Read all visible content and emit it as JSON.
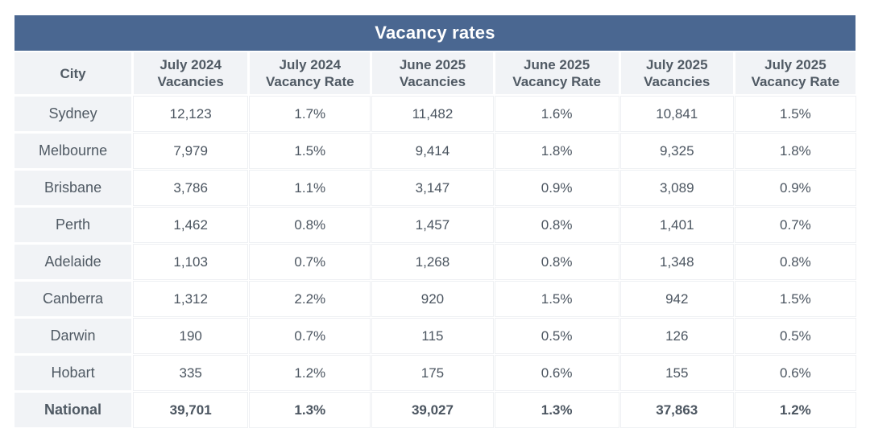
{
  "chart_data": {
    "type": "table",
    "title": "Vacancy rates",
    "columns": [
      "City",
      "July 2024\nVacancies",
      "July 2024\nVacancy Rate",
      "June 2025\nVacancies",
      "June 2025\nVacancy Rate",
      "July 2025\nVacancies",
      "July 2025\nVacancy Rate"
    ],
    "rows": [
      [
        "Sydney",
        "12,123",
        "1.7%",
        "11,482",
        "1.6%",
        "10,841",
        "1.5%"
      ],
      [
        "Melbourne",
        "7,979",
        "1.5%",
        "9,414",
        "1.8%",
        "9,325",
        "1.8%"
      ],
      [
        "Brisbane",
        "3,786",
        "1.1%",
        "3,147",
        "0.9%",
        "3,089",
        "0.9%"
      ],
      [
        "Perth",
        "1,462",
        "0.8%",
        "1,457",
        "0.8%",
        "1,401",
        "0.7%"
      ],
      [
        "Adelaide",
        "1,103",
        "0.7%",
        "1,268",
        "0.8%",
        "1,348",
        "0.8%"
      ],
      [
        "Canberra",
        "1,312",
        "2.2%",
        "920",
        "1.5%",
        "942",
        "1.5%"
      ],
      [
        "Darwin",
        "190",
        "0.7%",
        "115",
        "0.5%",
        "126",
        "0.5%"
      ],
      [
        "Hobart",
        "335",
        "1.2%",
        "175",
        "0.6%",
        "155",
        "0.6%"
      ],
      [
        "National",
        "39,701",
        "1.3%",
        "39,027",
        "1.3%",
        "37,863",
        "1.2%"
      ]
    ],
    "header_color": "#4a6791"
  }
}
